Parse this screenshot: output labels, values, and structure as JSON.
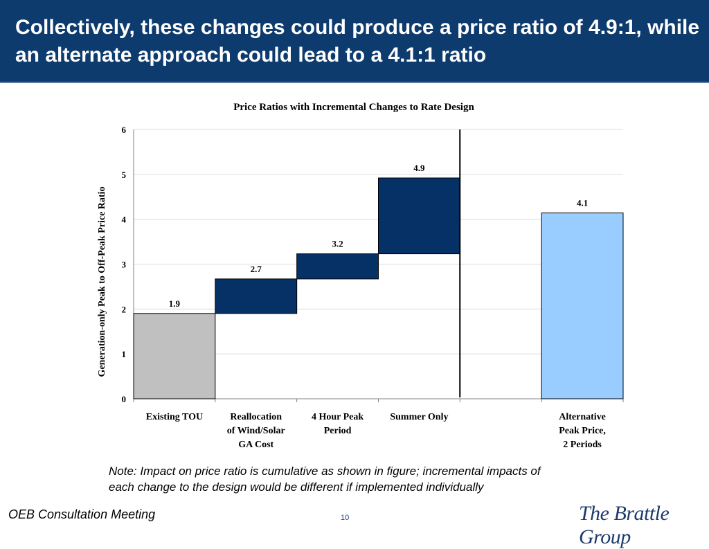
{
  "header": {
    "title": "Collectively, these changes could produce a price ratio of 4.9:1, while an alternate approach could lead to a 4.1:1 ratio"
  },
  "chart_data": {
    "type": "bar",
    "title": "Price Ratios with Incremental Changes to Rate Design",
    "xlabel": "",
    "ylabel": "Generation-only Peak to Off-Peak Price Ratio",
    "ylim": [
      0,
      6
    ],
    "yticks": [
      0,
      1,
      2,
      3,
      4,
      5,
      6
    ],
    "grid": true,
    "categories": [
      [
        "Existing TOU"
      ],
      [
        "Reallocation",
        "of Wind/Solar",
        "GA Cost"
      ],
      [
        "4 Hour Peak",
        "Period"
      ],
      [
        "Summer Only"
      ],
      [],
      [
        "Alternative",
        "Peak Price,",
        "2 Periods"
      ]
    ],
    "bars": [
      {
        "base": 0,
        "value": 1.9,
        "label": "1.9",
        "color": "#c0c0c0"
      },
      {
        "base": 1.9,
        "value": 2.67,
        "label": "2.7",
        "color": "#063166"
      },
      {
        "base": 2.67,
        "value": 3.23,
        "label": "3.2",
        "color": "#063166"
      },
      {
        "base": 3.23,
        "value": 4.92,
        "label": "4.9",
        "color": "#063166"
      },
      null,
      {
        "base": 0,
        "value": 4.14,
        "label": "4.1",
        "color": "#99ccff"
      }
    ],
    "separator_after_category": 4
  },
  "note": {
    "line1": "Note: Impact on price ratio is cumulative as shown in figure; incremental impacts of",
    "line2": "each change to the design would be different if implemented individually"
  },
  "footer": {
    "left_text": "OEB Consultation Meeting",
    "page_number": "10",
    "logo_text": "The Brattle Group"
  }
}
